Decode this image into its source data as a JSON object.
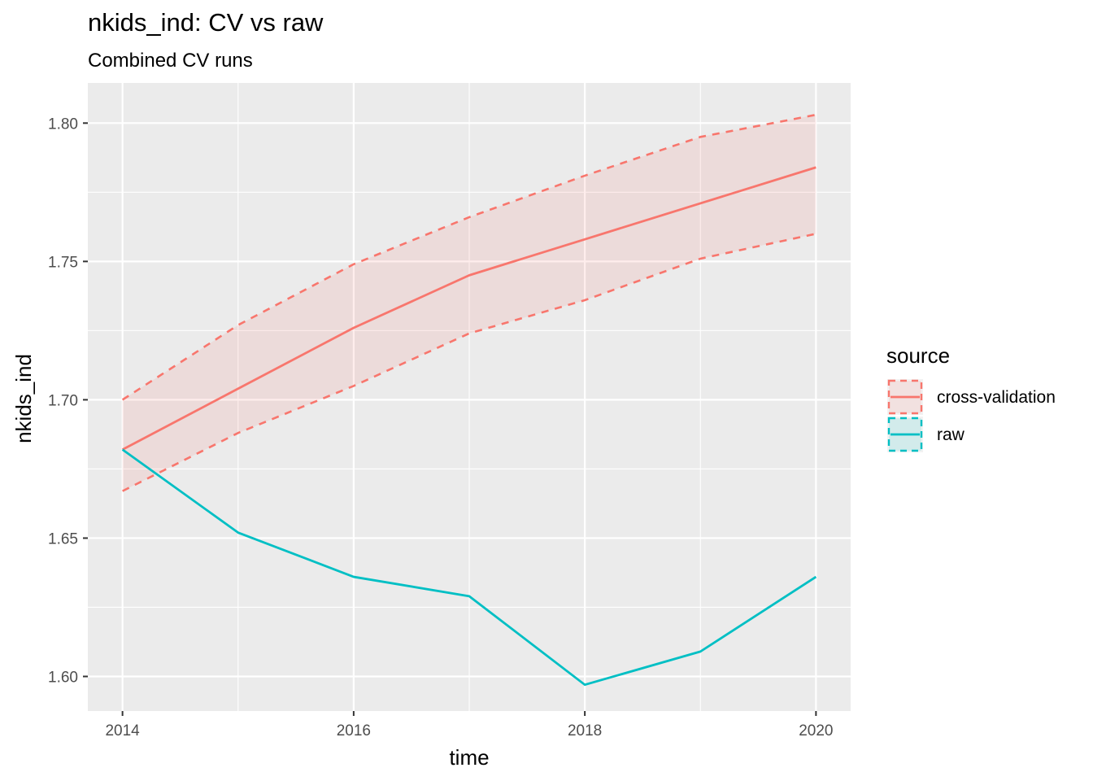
{
  "chart_data": {
    "type": "line",
    "title": "nkids_ind: CV vs raw",
    "subtitle": "Combined CV runs",
    "xlabel": "time",
    "ylabel": "nkids_ind",
    "xlim": [
      2013.7,
      2020.3
    ],
    "ylim": [
      1.5875,
      1.8145
    ],
    "x_ticks": [
      2014,
      2016,
      2018,
      2020
    ],
    "y_ticks": [
      1.6,
      1.65,
      1.7,
      1.75,
      1.8
    ],
    "y_tick_labels": [
      "1.60",
      "1.65",
      "1.70",
      "1.75",
      "1.80"
    ],
    "x_tick_labels": [
      "2014",
      "2016",
      "2018",
      "2020"
    ],
    "grid": true,
    "legend": {
      "title": "source",
      "position": "right"
    },
    "x": [
      2014,
      2015,
      2016,
      2017,
      2018,
      2019,
      2020
    ],
    "series": [
      {
        "name": "cross-validation",
        "color": "#F8766D",
        "values": [
          1.682,
          1.704,
          1.726,
          1.745,
          1.758,
          1.771,
          1.784
        ],
        "lower": [
          1.667,
          1.688,
          1.705,
          1.724,
          1.736,
          1.751,
          1.76
        ],
        "upper": [
          1.7,
          1.727,
          1.749,
          1.766,
          1.781,
          1.795,
          1.803
        ]
      },
      {
        "name": "raw",
        "color": "#00BFC4",
        "values": [
          1.682,
          1.652,
          1.636,
          1.629,
          1.597,
          1.609,
          1.636
        ]
      }
    ]
  }
}
